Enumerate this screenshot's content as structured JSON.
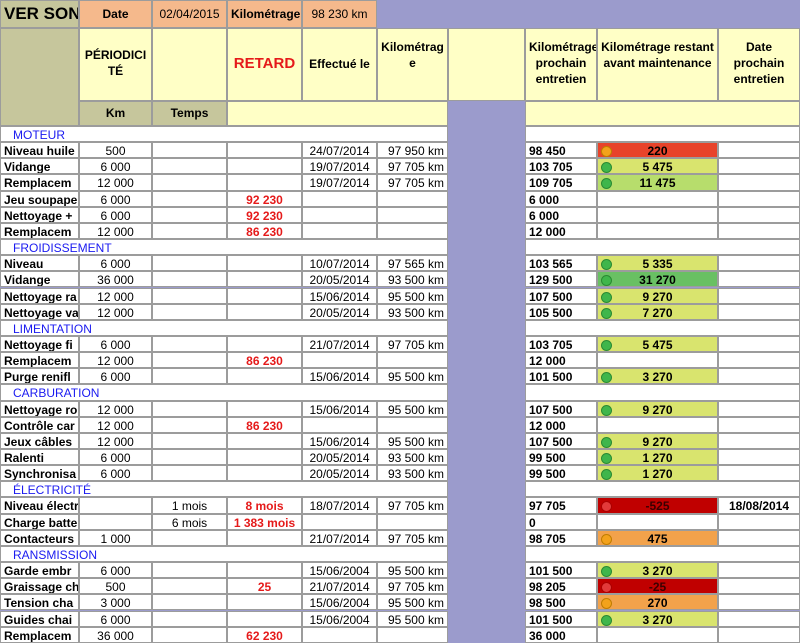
{
  "title": "VER SON",
  "top": {
    "date_label": "Date",
    "date_value": "02/04/2015",
    "km_label": "Kilométrage",
    "km_value": "98 230 km"
  },
  "headers": {
    "periodicite": "PÉRIODICITÉ",
    "retard": "RETARD",
    "effectue": "Effectué le",
    "kilometrage": "Kilométrage",
    "prochain": "Kilométrage prochain entretien",
    "restant": "Kilométrage restant avant maintenance",
    "date_prochain": "Date prochain entretien",
    "km_unit": "Km",
    "temps": "Temps"
  },
  "sections": [
    {
      "title": "MOTEUR",
      "rows": [
        {
          "name": "Niveau huile",
          "km": "500",
          "temps": "",
          "retard": "",
          "effectue": "24/07/2014",
          "kilometrage": "97 950 km",
          "prochain": "98 450",
          "status": "orange",
          "restant": "220",
          "date": ""
        },
        {
          "name": "Vidange",
          "km": "6 000",
          "temps": "",
          "retard": "",
          "effectue": "19/07/2014",
          "kilometrage": "97 705 km",
          "prochain": "103 705",
          "status": "green",
          "restant": "5 475",
          "date": ""
        },
        {
          "name": "Remplacem",
          "km": "12 000",
          "temps": "",
          "retard": "",
          "effectue": "19/07/2014",
          "kilometrage": "97 705 km",
          "prochain": "109 705",
          "status": "green",
          "restant": "11 475",
          "date": ""
        },
        {
          "name": "Jeu soupape",
          "km": "6 000",
          "temps": "",
          "retard": "92 230",
          "effectue": "",
          "kilometrage": "",
          "prochain": "6 000",
          "status": "",
          "restant": "",
          "date": ""
        },
        {
          "name": "Nettoyage +",
          "km": "6 000",
          "temps": "",
          "retard": "92 230",
          "effectue": "",
          "kilometrage": "",
          "prochain": "6 000",
          "status": "",
          "restant": "",
          "date": ""
        },
        {
          "name": "Remplacem",
          "km": "12 000",
          "temps": "",
          "retard": "86 230",
          "effectue": "",
          "kilometrage": "",
          "prochain": "12 000",
          "status": "",
          "restant": "",
          "date": ""
        }
      ]
    },
    {
      "title": "FROIDISSEMENT",
      "rows": [
        {
          "name": "Niveau",
          "km": "6 000",
          "temps": "",
          "retard": "",
          "effectue": "10/07/2014",
          "kilometrage": "97 565 km",
          "prochain": "103 565",
          "status": "green",
          "restant": "5 335",
          "date": ""
        },
        {
          "name": "Vidange",
          "km": "36 000",
          "temps": "",
          "retard": "",
          "effectue": "20/05/2014",
          "kilometrage": "93 500 km",
          "prochain": "129 500",
          "status": "green",
          "restant": "31 270",
          "date": ""
        },
        {
          "name": "Nettoyage ra",
          "km": "12 000",
          "temps": "",
          "retard": "",
          "effectue": "15/06/2014",
          "kilometrage": "95 500 km",
          "prochain": "107 500",
          "status": "green",
          "restant": "9 270",
          "date": ""
        },
        {
          "name": "Nettoyage va",
          "km": "12 000",
          "temps": "",
          "retard": "",
          "effectue": "20/05/2014",
          "kilometrage": "93 500 km",
          "prochain": "105 500",
          "status": "green",
          "restant": "7 270",
          "date": ""
        }
      ]
    },
    {
      "title": "LIMENTATION",
      "rows": [
        {
          "name": "Nettoyage fi",
          "km": "6 000",
          "temps": "",
          "retard": "",
          "effectue": "21/07/2014",
          "kilometrage": "97 705 km",
          "prochain": "103 705",
          "status": "green",
          "restant": "5 475",
          "date": ""
        },
        {
          "name": "Remplacem",
          "km": "12 000",
          "temps": "",
          "retard": "86 230",
          "effectue": "",
          "kilometrage": "",
          "prochain": "12 000",
          "status": "",
          "restant": "",
          "date": ""
        },
        {
          "name": "Purge renifl",
          "km": "6 000",
          "temps": "",
          "retard": "",
          "effectue": "15/06/2014",
          "kilometrage": "95 500 km",
          "prochain": "101 500",
          "status": "green",
          "restant": "3 270",
          "date": ""
        }
      ]
    },
    {
      "title": "CARBURATION",
      "rows": [
        {
          "name": "Nettoyage ro",
          "km": "12 000",
          "temps": "",
          "retard": "",
          "effectue": "15/06/2014",
          "kilometrage": "95 500 km",
          "prochain": "107 500",
          "status": "green",
          "restant": "9 270",
          "date": ""
        },
        {
          "name": "Contrôle car",
          "km": "12 000",
          "temps": "",
          "retard": "86 230",
          "effectue": "",
          "kilometrage": "",
          "prochain": "12 000",
          "status": "",
          "restant": "",
          "date": ""
        },
        {
          "name": "Jeux câbles",
          "km": "12 000",
          "temps": "",
          "retard": "",
          "effectue": "15/06/2014",
          "kilometrage": "95 500 km",
          "prochain": "107 500",
          "status": "green",
          "restant": "9 270",
          "date": ""
        },
        {
          "name": "Ralenti",
          "km": "6 000",
          "temps": "",
          "retard": "",
          "effectue": "20/05/2014",
          "kilometrage": "93 500 km",
          "prochain": "99 500",
          "status": "green",
          "restant": "1 270",
          "date": ""
        },
        {
          "name": "Synchronisa",
          "km": "6 000",
          "temps": "",
          "retard": "",
          "effectue": "20/05/2014",
          "kilometrage": "93 500 km",
          "prochain": "99 500",
          "status": "green",
          "restant": "1 270",
          "date": ""
        }
      ]
    },
    {
      "title": "ÉLECTRICITÉ",
      "rows": [
        {
          "name": "Niveau électrolyte",
          "km": "",
          "temps": "1 mois",
          "retard": "8 mois",
          "effectue": "18/07/2014",
          "kilometrage": "97 705 km",
          "prochain": "97 705",
          "status": "red",
          "restant": "-525",
          "date": "18/08/2014"
        },
        {
          "name": "Charge batterie",
          "km": "",
          "temps": "6 mois",
          "retard": "1 383 mois",
          "effectue": "",
          "kilometrage": "",
          "prochain": "0",
          "status": "",
          "restant": "",
          "date": ""
        },
        {
          "name": "Contacteurs",
          "km": "1 000",
          "temps": "",
          "retard": "",
          "effectue": "21/07/2014",
          "kilometrage": "97 705 km",
          "prochain": "98 705",
          "status": "orange",
          "restant": "475",
          "date": ""
        }
      ]
    },
    {
      "title": "RANSMISSION",
      "rows": [
        {
          "name": "Garde embr",
          "km": "6 000",
          "temps": "",
          "retard": "",
          "effectue": "15/06/2004",
          "kilometrage": "95 500 km",
          "prochain": "101 500",
          "status": "green",
          "restant": "3 270",
          "date": ""
        },
        {
          "name": "Graissage ch",
          "km": "500",
          "temps": "",
          "retard": "25",
          "effectue": "21/07/2014",
          "kilometrage": "97 705 km",
          "prochain": "98 205",
          "status": "red",
          "restant": "-25",
          "date": ""
        },
        {
          "name": "Tension cha",
          "km": "3 000",
          "temps": "",
          "retard": "",
          "effectue": "15/06/2004",
          "kilometrage": "95 500 km",
          "prochain": "98 500",
          "status": "orange",
          "restant": "270",
          "date": ""
        },
        {
          "name": "Guides chai",
          "km": "6 000",
          "temps": "",
          "retard": "",
          "effectue": "15/06/2004",
          "kilometrage": "95 500 km",
          "prochain": "101 500",
          "status": "green",
          "restant": "3 270",
          "date": ""
        },
        {
          "name": "Remplacem",
          "km": "36 000",
          "temps": "",
          "retard": "62 230",
          "effectue": "",
          "kilometrage": "",
          "prochain": "36 000",
          "status": "",
          "restant": "",
          "date": ""
        }
      ]
    }
  ],
  "restant_colors": {
    "220": "bg-red",
    "5 475": "bg-yellow",
    "11 475": "bg-ltgreen",
    "5 335": "bg-yellow",
    "31 270": "bg-green",
    "9 270": "bg-yellow",
    "7 270": "bg-yellow",
    "3 270": "bg-yellow",
    "1 270": "bg-yellow",
    "-525": "bg-darkred",
    "475": "bg-orange",
    "-25": "bg-darkred",
    "270": "bg-orange"
  }
}
